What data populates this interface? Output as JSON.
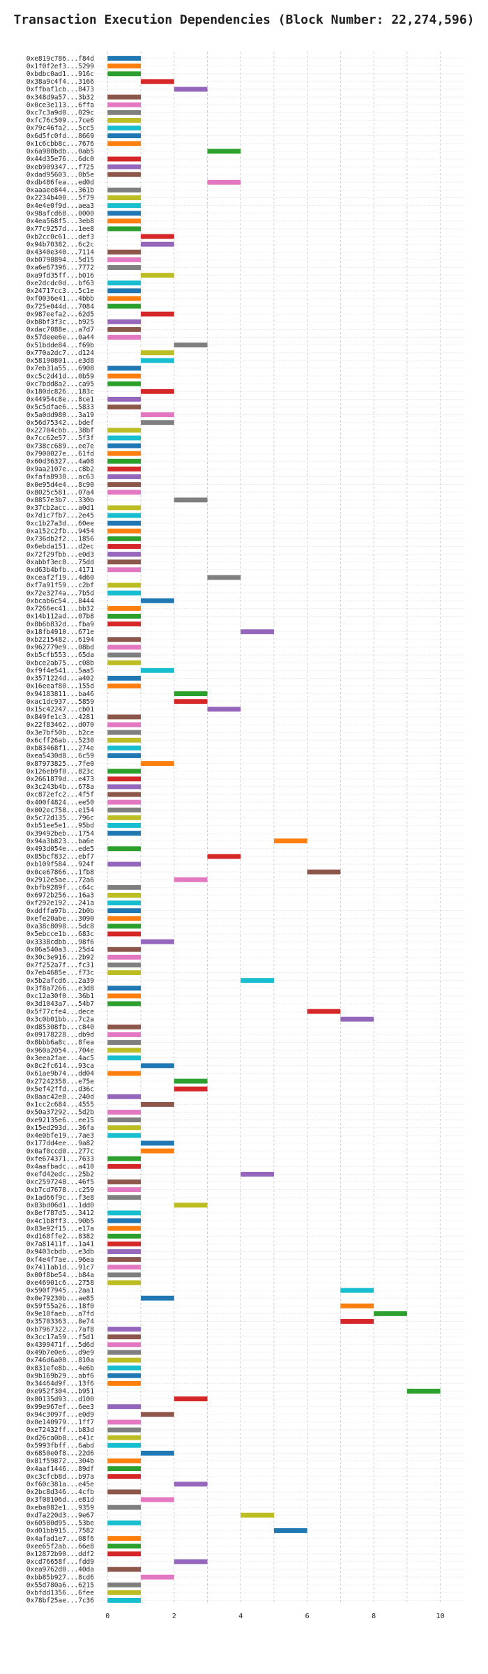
{
  "chart_data": {
    "type": "bar",
    "orientation": "horizontal",
    "title": "Transaction Execution Dependencies (Block Number: 22,274,596)",
    "xlabel": "",
    "ylabel": "",
    "xlim": [
      -0.3,
      10.7
    ],
    "xticks": [
      0,
      2,
      4,
      6,
      8,
      10
    ],
    "grid": {
      "x": true,
      "y": true,
      "style": "dotted"
    },
    "bar_width": 1,
    "palette": [
      "#1f77b4",
      "#ff7f0e",
      "#2ca02c",
      "#d62728",
      "#9467bd",
      "#8c564b",
      "#e377c2",
      "#7f7f7f",
      "#bcbd22",
      "#17becf"
    ],
    "categories": [
      "0xe819c786...f84d",
      "0x1f0f2ef3...5299",
      "0xbdbc0ad1...916c",
      "0x38a9c4f4...3166",
      "0xffbaf1cb...8473",
      "0x348d9a57...3b32",
      "0x0ce3e113...6ffa",
      "0xc7c3a9d0...029c",
      "0xfc76c509...7ce6",
      "0x79c46fa2...5cc5",
      "0x6d5fc0fd...8669",
      "0x1c6cbb8c...7676",
      "0x6a980bdb...0ab5",
      "0x44d35e76...6dc0",
      "0xeb909347...f725",
      "0xdad95603...0b5e",
      "0xdb486fea...ed0d",
      "0xaaaee844...361b",
      "0x2234b400...5f79",
      "0x4e4e0f9d...aea3",
      "0x98afcd68...0000",
      "0x4ea568f5...3eb8",
      "0x77c9257d...1ee8",
      "0xb2cc0c61...def3",
      "0x94b70382...6c2c",
      "0x4340e340...7114",
      "0xb0798894...5d15",
      "0xa6e67396...7772",
      "0xa9fd35ff...b016",
      "0xe2dcdc0d...bf63",
      "0x24717cc3...5c1e",
      "0xf0036e41...4bbb",
      "0x725e044d...7084",
      "0x987eefa2...62d5",
      "0xb8bf3f3c...b925",
      "0xdac7088e...a7d7",
      "0x57deee6e...0a44",
      "0x51bdde84...f69b",
      "0x770a2dc7...d124",
      "0x58190801...e3d8",
      "0x7eb31a55...6908",
      "0xc5c2d41d...0b59",
      "0xc7bdd8a2...ca95",
      "0x180dc826...183c",
      "0x44954c8e...8ce1",
      "0x5c5dfae6...5833",
      "0x5a0dd980...3a19",
      "0x56d75342...bdef",
      "0x22704cbb...38bf",
      "0x7cc62e57...5f3f",
      "0x738cc689...ee7e",
      "0x7900027e...61fd",
      "0x60d36327...4a08",
      "0x9aa2107e...c8b2",
      "0xfafa8930...ac63",
      "0x0e95d4e4...8c90",
      "0x8025c581...07a4",
      "0x8857e3b7...330b",
      "0x37cb2acc...a0d1",
      "0x7d1c7fb7...2e45",
      "0xc1b27a3d...60ee",
      "0xa152c2fb...9454",
      "0x736db2f2...1856",
      "0x6ebda151...d2ec",
      "0x72f29fbb...e0d3",
      "0xabbf3ec8...75dd",
      "0xd63b4bfb...4171",
      "0xceaf2f19...4d60",
      "0xf7a91f59...c2bf",
      "0x72e3274a...7b5d",
      "0xbcab6c54...8444",
      "0x7266ec41...bb32",
      "0x14b112ad...07b8",
      "0x8b6b832d...fba9",
      "0x18fb4910...671e",
      "0xb2215482...6194",
      "0x962779e9...08bd",
      "0xb5cfb553...65da",
      "0xbce2ab75...c08b",
      "0xf9f4e541...5aa5",
      "0x3571224d...a402",
      "0x16eeaf80...155d",
      "0x94183811...ba46",
      "0xac1dc937...5859",
      "0x15c42247...cb01",
      "0x849fe1c3...4281",
      "0x22f83462...d070",
      "0x3e7bf50b...b2ce",
      "0x6cff26ab...5230",
      "0xb83468f1...274e",
      "0xea5430d8...6c59",
      "0x87973825...7fe0",
      "0x126eb9f0...823c",
      "0x2661879d...e473",
      "0x3c243b4b...678a",
      "0xc872efc2...4f5f",
      "0x400f4824...ee50",
      "0x002ec758...e154",
      "0x5c72d135...796c",
      "0xb51ee5e1...95bd",
      "0x39492beb...1754",
      "0x94a3b823...ba6e",
      "0x493d054e...ede5",
      "0x85bcf832...ebf7",
      "0xb109f584...924f",
      "0x0ce67866...1fb8",
      "0x2912e5ae...72a6",
      "0xbfb9289f...c64c",
      "0x6972b256...16a3",
      "0xf292e192...241a",
      "0xddffa97b...2b0b",
      "0xefe20abe...3090",
      "0xa38c8098...5dc8",
      "0x5ebcce1b...683c",
      "0x3338cdbb...98f6",
      "0x06a540a3...25d4",
      "0x30c3e916...2b92",
      "0x7f252a7f...fc31",
      "0x7eb4685e...f73c",
      "0x5b2afcd6...2a39",
      "0x3f8a7266...e3d8",
      "0xc12a30f0...36b1",
      "0x3d1043a7...54b7",
      "0x5f77cfe4...dece",
      "0x3c0b01bb...7c2a",
      "0xd85308fb...c840",
      "0x09178228...db9d",
      "0x8bbb6a8c...8fea",
      "0x960a2054...704e",
      "0x3eea2fae...4ac5",
      "0x8c2fc614...93ca",
      "0x61ae9b74...dd04",
      "0x27242358...e75e",
      "0x5ef42ffd...d36c",
      "0x8aac42e8...240d",
      "0x1cc2c684...4555",
      "0x50a37292...5d2b",
      "0xe92135e6...ee15",
      "0x15ed293d...36fa",
      "0x4e0bfe19...7ae3",
      "0x177dd4ee...9a82",
      "0x0af0ccd0...277c",
      "0xfe674371...7633",
      "0x4aafbadc...a410",
      "0xefd42edc...25b2",
      "0xc2597248...46f5",
      "0xb7cd7678...c259",
      "0x1ad66f9c...f3e8",
      "0x83bd06d1...1dd0",
      "0x8ef787d5...3412",
      "0x4c1b8ff3...90b5",
      "0x83e92f15...e17a",
      "0xd168ffe2...8382",
      "0x7a81411f...1a41",
      "0x9403cbdb...e3db",
      "0xf4e4f7ae...96ea",
      "0x7411ab1d...91c7",
      "0x00f8be54...b84a",
      "0xe46901c6...2758",
      "0x590f7945...2aa1",
      "0x0e79230b...ae85",
      "0x59f55a26...18f0",
      "0x9e10faeb...a7fd",
      "0x35703363...8e74",
      "0xb7967322...7af8",
      "0x3cc17a59...f5d1",
      "0x4399471f...5d6d",
      "0x49b7e0e6...d9e9",
      "0x746d6a00...810a",
      "0x831efe8b...4e6b",
      "0x9b169b29...abf6",
      "0x34464d9f...13f6",
      "0xe952f304...b951",
      "0x80135d93...d100",
      "0x99e967ef...6ee3",
      "0x94c3097f...e0d9",
      "0x0e140979...1ff7",
      "0xe72432ff...b83d",
      "0xd26ca0b8...e41c",
      "0x5993fbff...6abd",
      "0x6850e0f8...22d6",
      "0x81f59872...304b",
      "0x4aaf1446...89df",
      "0xc3cfcb8d...b97a",
      "0xf60c381a...e45e",
      "0x2bc8d346...4cfb",
      "0x3f08106d...e81d",
      "0xeba082e1...9359",
      "0xd7a220d3...9e67",
      "0x60580d95...53be",
      "0xd01bb915...7582",
      "0x4afad1e7...08f6",
      "0xee65f2ab...66e8",
      "0x12872b90...ddf2",
      "0xcd76658f...fdd9",
      "0xea9762d0...40da",
      "0xbb85b927...8cd6",
      "0x55d780a6...6215",
      "0xbfdd1356...6fee",
      "0x78bf25ae...7c36"
    ],
    "bars": [
      [
        0,
        0
      ],
      [
        0,
        1
      ],
      [
        0,
        2
      ],
      [
        1,
        3
      ],
      [
        2,
        4
      ],
      [
        0,
        5
      ],
      [
        0,
        6
      ],
      [
        0,
        7
      ],
      [
        0,
        8
      ],
      [
        0,
        9
      ],
      [
        0,
        0
      ],
      [
        0,
        1
      ],
      [
        3,
        2
      ],
      [
        0,
        3
      ],
      [
        0,
        4
      ],
      [
        0,
        5
      ],
      [
        3,
        6
      ],
      [
        0,
        7
      ],
      [
        0,
        8
      ],
      [
        0,
        9
      ],
      [
        0,
        0
      ],
      [
        0,
        1
      ],
      [
        0,
        2
      ],
      [
        1,
        3
      ],
      [
        1,
        4
      ],
      [
        0,
        5
      ],
      [
        0,
        6
      ],
      [
        0,
        7
      ],
      [
        1,
        8
      ],
      [
        0,
        9
      ],
      [
        0,
        0
      ],
      [
        0,
        1
      ],
      [
        0,
        2
      ],
      [
        1,
        3
      ],
      [
        0,
        4
      ],
      [
        0,
        5
      ],
      [
        0,
        6
      ],
      [
        2,
        7
      ],
      [
        1,
        8
      ],
      [
        1,
        9
      ],
      [
        0,
        0
      ],
      [
        0,
        1
      ],
      [
        0,
        2
      ],
      [
        1,
        3
      ],
      [
        0,
        4
      ],
      [
        0,
        5
      ],
      [
        1,
        6
      ],
      [
        1,
        7
      ],
      [
        0,
        8
      ],
      [
        0,
        9
      ],
      [
        0,
        0
      ],
      [
        0,
        1
      ],
      [
        0,
        2
      ],
      [
        0,
        3
      ],
      [
        0,
        4
      ],
      [
        0,
        5
      ],
      [
        0,
        6
      ],
      [
        2,
        7
      ],
      [
        0,
        8
      ],
      [
        0,
        9
      ],
      [
        0,
        0
      ],
      [
        0,
        1
      ],
      [
        0,
        2
      ],
      [
        0,
        3
      ],
      [
        0,
        4
      ],
      [
        0,
        5
      ],
      [
        0,
        6
      ],
      [
        3,
        7
      ],
      [
        0,
        8
      ],
      [
        0,
        9
      ],
      [
        1,
        0
      ],
      [
        0,
        1
      ],
      [
        0,
        2
      ],
      [
        0,
        3
      ],
      [
        4,
        4
      ],
      [
        0,
        5
      ],
      [
        0,
        6
      ],
      [
        0,
        7
      ],
      [
        0,
        8
      ],
      [
        1,
        9
      ],
      [
        0,
        0
      ],
      [
        0,
        1
      ],
      [
        2,
        2
      ],
      [
        2,
        3
      ],
      [
        3,
        4
      ],
      [
        0,
        5
      ],
      [
        0,
        6
      ],
      [
        0,
        7
      ],
      [
        0,
        8
      ],
      [
        0,
        9
      ],
      [
        0,
        0
      ],
      [
        1,
        1
      ],
      [
        0,
        2
      ],
      [
        0,
        3
      ],
      [
        0,
        4
      ],
      [
        0,
        5
      ],
      [
        0,
        6
      ],
      [
        0,
        7
      ],
      [
        0,
        8
      ],
      [
        0,
        9
      ],
      [
        0,
        0
      ],
      [
        5,
        1
      ],
      [
        0,
        2
      ],
      [
        3,
        3
      ],
      [
        0,
        4
      ],
      [
        6,
        5
      ],
      [
        2,
        6
      ],
      [
        0,
        7
      ],
      [
        0,
        8
      ],
      [
        0,
        9
      ],
      [
        0,
        0
      ],
      [
        0,
        1
      ],
      [
        0,
        2
      ],
      [
        0,
        3
      ],
      [
        1,
        4
      ],
      [
        0,
        5
      ],
      [
        0,
        6
      ],
      [
        0,
        7
      ],
      [
        0,
        8
      ],
      [
        4,
        9
      ],
      [
        0,
        0
      ],
      [
        0,
        1
      ],
      [
        0,
        2
      ],
      [
        6,
        3
      ],
      [
        7,
        4
      ],
      [
        0,
        5
      ],
      [
        0,
        6
      ],
      [
        0,
        7
      ],
      [
        0,
        8
      ],
      [
        0,
        9
      ],
      [
        1,
        0
      ],
      [
        0,
        1
      ],
      [
        2,
        2
      ],
      [
        2,
        3
      ],
      [
        0,
        4
      ],
      [
        1,
        5
      ],
      [
        0,
        6
      ],
      [
        0,
        7
      ],
      [
        0,
        8
      ],
      [
        0,
        9
      ],
      [
        1,
        0
      ],
      [
        1,
        1
      ],
      [
        0,
        2
      ],
      [
        0,
        3
      ],
      [
        4,
        4
      ],
      [
        0,
        5
      ],
      [
        0,
        6
      ],
      [
        0,
        7
      ],
      [
        2,
        8
      ],
      [
        0,
        9
      ],
      [
        0,
        0
      ],
      [
        0,
        1
      ],
      [
        0,
        2
      ],
      [
        0,
        3
      ],
      [
        0,
        4
      ],
      [
        0,
        5
      ],
      [
        0,
        6
      ],
      [
        0,
        7
      ],
      [
        0,
        8
      ],
      [
        7,
        9
      ],
      [
        1,
        0
      ],
      [
        7,
        1
      ],
      [
        8,
        2
      ],
      [
        7,
        3
      ],
      [
        0,
        4
      ],
      [
        0,
        5
      ],
      [
        0,
        6
      ],
      [
        0,
        7
      ],
      [
        0,
        8
      ],
      [
        0,
        9
      ],
      [
        0,
        0
      ],
      [
        0,
        1
      ],
      [
        9,
        2
      ],
      [
        2,
        3
      ],
      [
        0,
        4
      ],
      [
        1,
        5
      ],
      [
        0,
        6
      ],
      [
        0,
        7
      ],
      [
        0,
        8
      ],
      [
        0,
        9
      ],
      [
        1,
        0
      ],
      [
        0,
        1
      ],
      [
        0,
        2
      ],
      [
        0,
        3
      ],
      [
        2,
        4
      ],
      [
        0,
        5
      ],
      [
        1,
        6
      ],
      [
        0,
        7
      ],
      [
        4,
        8
      ],
      [
        0,
        9
      ],
      [
        5,
        0
      ],
      [
        0,
        1
      ],
      [
        0,
        2
      ],
      [
        0,
        3
      ],
      [
        2,
        4
      ],
      [
        0,
        5
      ],
      [
        1,
        6
      ],
      [
        0,
        7
      ],
      [
        0,
        8
      ],
      [
        0,
        9
      ]
    ]
  }
}
